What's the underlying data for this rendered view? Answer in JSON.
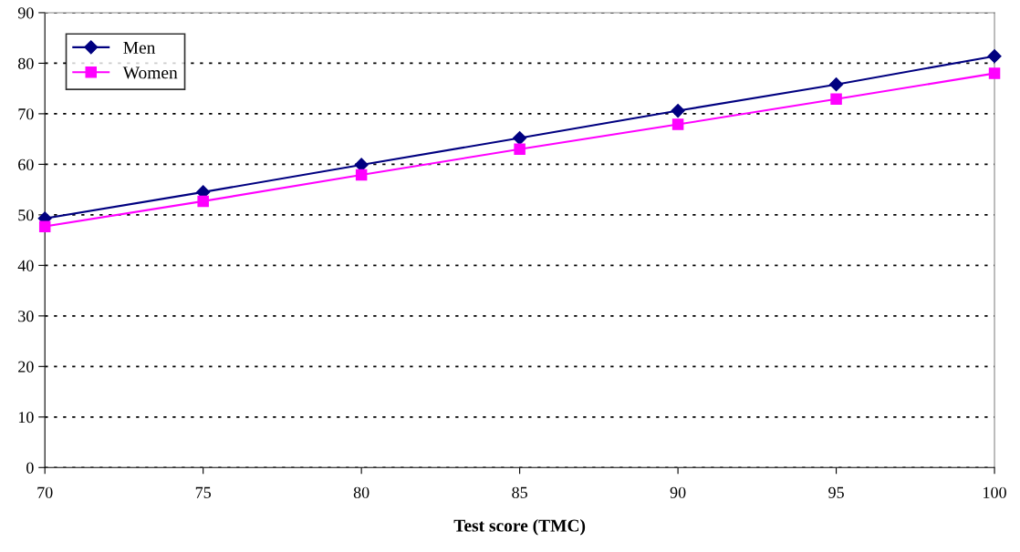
{
  "chart_data": {
    "type": "line",
    "xlabel": "Test score (TMC)",
    "x": [
      70,
      75,
      80,
      85,
      90,
      95,
      100
    ],
    "series": [
      {
        "name": "Men",
        "color": "#000080",
        "marker": "diamond",
        "values": [
          49.3,
          54.5,
          59.9,
          65.2,
          70.6,
          75.8,
          81.4
        ]
      },
      {
        "name": "Women",
        "color": "#ff00ff",
        "marker": "square",
        "values": [
          47.7,
          52.7,
          57.9,
          63.0,
          67.9,
          72.9,
          78.0
        ]
      }
    ],
    "xlim": [
      70,
      100
    ],
    "xticks": [
      70,
      75,
      80,
      85,
      90,
      95,
      100
    ],
    "ylim": [
      0,
      90
    ],
    "yticks": [
      0,
      10,
      20,
      30,
      40,
      50,
      60,
      70,
      80,
      90
    ],
    "grid": "y",
    "legend": "top left",
    "line_style": "solid"
  }
}
